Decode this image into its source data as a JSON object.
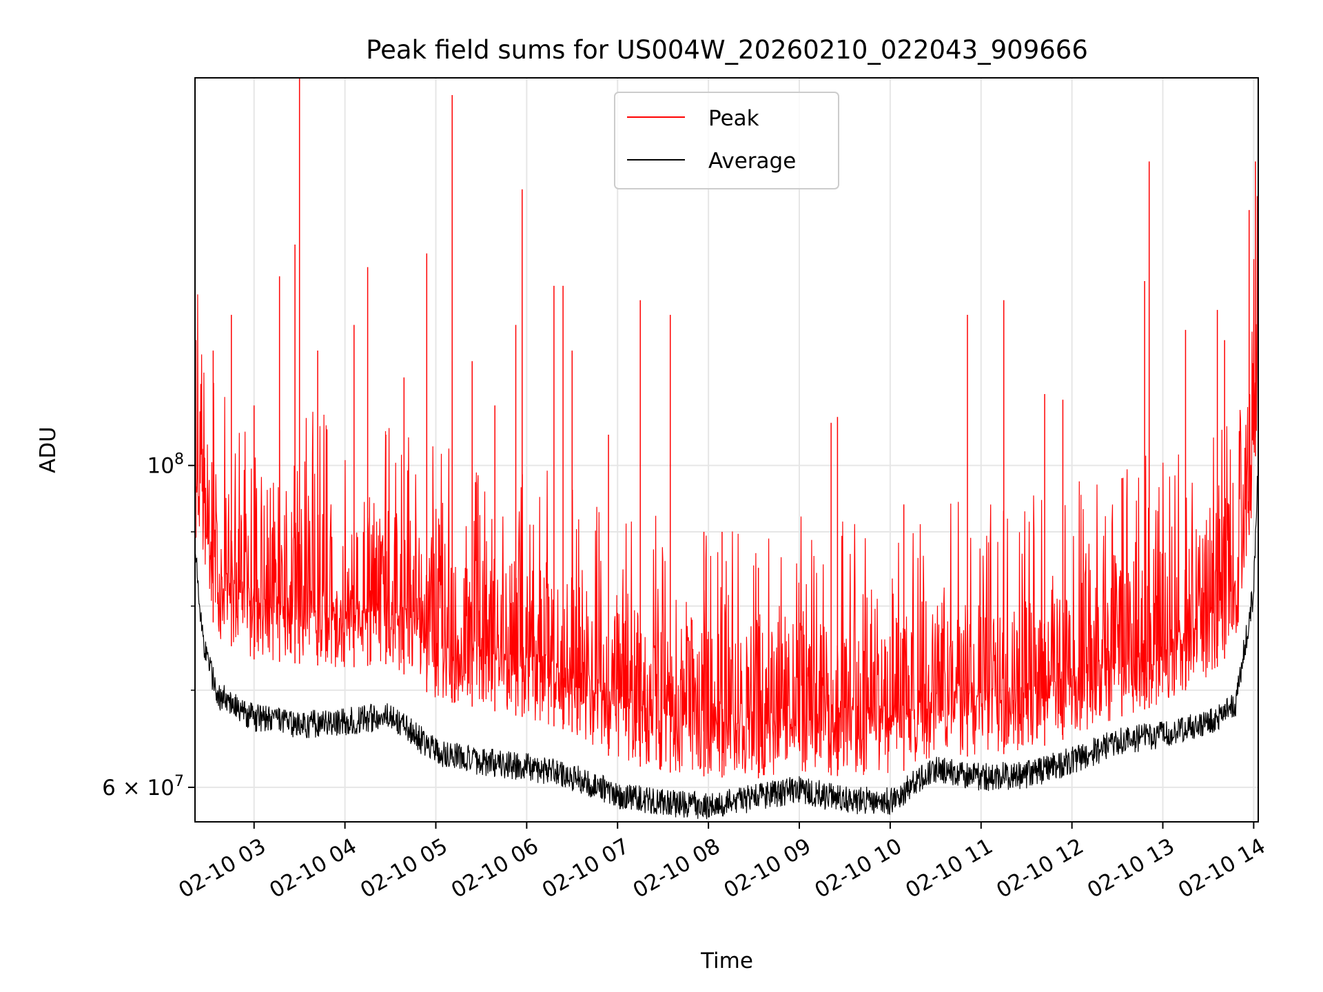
{
  "chart_data": {
    "type": "line",
    "title": "Peak field sums for US004W_20260210_022043_909666",
    "xlabel": "Time",
    "ylabel": "ADU",
    "yscale": "log",
    "ylim": [
      56800000,
      185000000
    ],
    "xlim": [
      2.35,
      14.05
    ],
    "x_ticks": [
      {
        "value": 3,
        "label": "02-10 03"
      },
      {
        "value": 4,
        "label": "02-10 04"
      },
      {
        "value": 5,
        "label": "02-10 05"
      },
      {
        "value": 6,
        "label": "02-10 06"
      },
      {
        "value": 7,
        "label": "02-10 07"
      },
      {
        "value": 8,
        "label": "02-10 08"
      },
      {
        "value": 9,
        "label": "02-10 09"
      },
      {
        "value": 10,
        "label": "02-10 10"
      },
      {
        "value": 11,
        "label": "02-10 11"
      },
      {
        "value": 12,
        "label": "02-10 12"
      },
      {
        "value": 13,
        "label": "02-10 13"
      },
      {
        "value": 14,
        "label": "02-10 14"
      }
    ],
    "y_major_ticks": [
      {
        "value": 60000000,
        "base": "6",
        "exponent": "7",
        "mantissa_label": "6 × 10"
      },
      {
        "value": 100000000,
        "base": "10",
        "exponent": "8",
        "mantissa_label": "10"
      }
    ],
    "y_minor_ticks": [
      70000000,
      80000000,
      90000000
    ],
    "grid": true,
    "legend": {
      "position": "top-center",
      "entries": [
        "Peak",
        "Average"
      ]
    },
    "series": [
      {
        "name": "Peak",
        "color": "#ff0000",
        "description": "baseline roughly tracks Average plus ~4-10%; frequent spikes",
        "x": [
          2.35,
          2.45,
          2.6,
          3.0,
          3.5,
          4.0,
          4.5,
          5.0,
          5.5,
          6.0,
          6.5,
          7.0,
          7.5,
          8.0,
          8.5,
          9.0,
          9.5,
          10.0,
          10.5,
          11.0,
          11.5,
          12.0,
          12.5,
          13.0,
          13.5,
          13.8,
          14.0,
          14.05
        ],
        "values": [
          90000000,
          82000000,
          76000000,
          73500000,
          73000000,
          72500000,
          73000000,
          69000000,
          68000000,
          67000000,
          65500000,
          62500000,
          61500000,
          61000000,
          60800000,
          61500000,
          61000000,
          61000000,
          63000000,
          63000000,
          63500000,
          65000000,
          67000000,
          68500000,
          71500000,
          75000000,
          95000000,
          112000000
        ],
        "spikes": [
          {
            "x": 2.36,
            "y": 122000000
          },
          {
            "x": 2.55,
            "y": 120000000
          },
          {
            "x": 2.75,
            "y": 127000000
          },
          {
            "x": 3.0,
            "y": 110000000
          },
          {
            "x": 3.28,
            "y": 135000000
          },
          {
            "x": 3.45,
            "y": 142000000
          },
          {
            "x": 3.5,
            "y": 185000000
          },
          {
            "x": 3.7,
            "y": 120000000
          },
          {
            "x": 4.1,
            "y": 125000000
          },
          {
            "x": 4.25,
            "y": 137000000
          },
          {
            "x": 4.45,
            "y": 105000000
          },
          {
            "x": 4.65,
            "y": 115000000
          },
          {
            "x": 4.9,
            "y": 140000000
          },
          {
            "x": 5.18,
            "y": 180000000
          },
          {
            "x": 5.4,
            "y": 118000000
          },
          {
            "x": 5.65,
            "y": 110000000
          },
          {
            "x": 5.88,
            "y": 125000000
          },
          {
            "x": 5.95,
            "y": 155000000
          },
          {
            "x": 6.3,
            "y": 133000000
          },
          {
            "x": 6.4,
            "y": 133000000
          },
          {
            "x": 6.5,
            "y": 120000000
          },
          {
            "x": 6.9,
            "y": 105000000
          },
          {
            "x": 7.25,
            "y": 130000000
          },
          {
            "x": 7.58,
            "y": 127000000
          },
          {
            "x": 7.95,
            "y": 90000000
          },
          {
            "x": 8.15,
            "y": 90000000
          },
          {
            "x": 8.55,
            "y": 85000000
          },
          {
            "x": 9.35,
            "y": 107000000
          },
          {
            "x": 9.42,
            "y": 108000000
          },
          {
            "x": 10.15,
            "y": 94000000
          },
          {
            "x": 10.85,
            "y": 127000000
          },
          {
            "x": 11.25,
            "y": 130000000
          },
          {
            "x": 11.7,
            "y": 112000000
          },
          {
            "x": 11.9,
            "y": 111000000
          },
          {
            "x": 12.55,
            "y": 98000000
          },
          {
            "x": 12.8,
            "y": 134000000
          },
          {
            "x": 12.85,
            "y": 162000000
          },
          {
            "x": 13.25,
            "y": 124000000
          },
          {
            "x": 13.6,
            "y": 128000000
          },
          {
            "x": 13.68,
            "y": 122000000
          },
          {
            "x": 13.95,
            "y": 150000000
          },
          {
            "x": 14.02,
            "y": 162000000
          },
          {
            "x": 14.05,
            "y": 137000000
          }
        ]
      },
      {
        "name": "Average",
        "color": "#000000",
        "x": [
          2.35,
          2.45,
          2.6,
          3.0,
          3.5,
          4.0,
          4.5,
          5.0,
          5.5,
          6.0,
          6.5,
          7.0,
          7.5,
          8.0,
          8.5,
          9.0,
          9.5,
          10.0,
          10.5,
          11.0,
          11.5,
          12.0,
          12.5,
          13.0,
          13.5,
          13.8,
          14.0,
          14.05
        ],
        "values": [
          87000000,
          75000000,
          69500000,
          67000000,
          66300000,
          66600000,
          67200000,
          63500000,
          62500000,
          62000000,
          61000000,
          59300000,
          58600000,
          58300000,
          59000000,
          59800000,
          58800000,
          58700000,
          61800000,
          61000000,
          61200000,
          62600000,
          64500000,
          65300000,
          66500000,
          68500000,
          82000000,
          100000000
        ]
      }
    ]
  }
}
